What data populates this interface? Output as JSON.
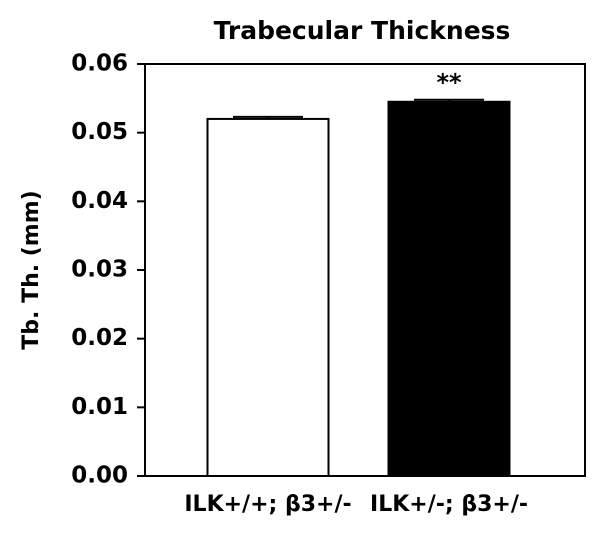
{
  "chart_data": {
    "type": "bar",
    "title": "Trabecular Thickness",
    "ylabel": "Tb. Th. (mm)",
    "categories": [
      "ILK+/+; β3+/-",
      "ILK+/-; β3+/-"
    ],
    "values": [
      0.052,
      0.0545
    ],
    "errors": [
      0.0003,
      0.0003
    ],
    "colors": [
      "#ffffff",
      "#000000"
    ],
    "annotations": [
      null,
      "**"
    ],
    "ylim": [
      0,
      0.06
    ],
    "yticks": [
      {
        "value": 0,
        "label": "0.00"
      },
      0.01,
      0.02,
      0.03,
      0.04,
      0.05,
      0.06
    ],
    "grid": false
  }
}
